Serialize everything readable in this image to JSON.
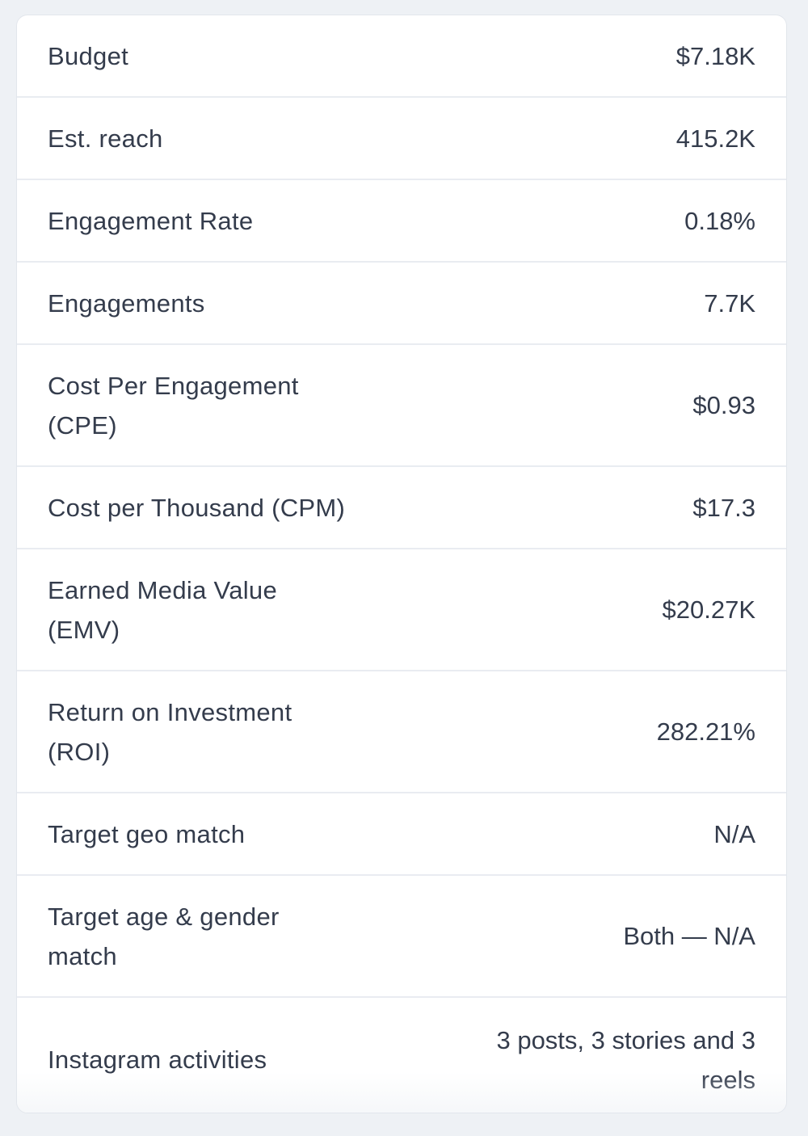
{
  "metrics": [
    {
      "label": "Budget",
      "value": "$7.18K"
    },
    {
      "label": "Est. reach",
      "value": "415.2K"
    },
    {
      "label": "Engagement Rate",
      "value": "0.18%"
    },
    {
      "label": "Engagements",
      "value": "7.7K"
    },
    {
      "label": "Cost Per Engagement (CPE)",
      "value": "$0.93"
    },
    {
      "label": "Cost per Thousand (CPM)",
      "value": "$17.3"
    },
    {
      "label": "Earned Media Value (EMV)",
      "value": "$20.27K"
    },
    {
      "label": "Return on Investment (ROI)",
      "value": "282.21%"
    },
    {
      "label": "Target geo match",
      "value": "N/A"
    },
    {
      "label": "Target age & gender match",
      "value": "Both — N/A"
    },
    {
      "label": "Instagram activities",
      "value": "3 posts, 3 stories and 3 reels"
    }
  ]
}
